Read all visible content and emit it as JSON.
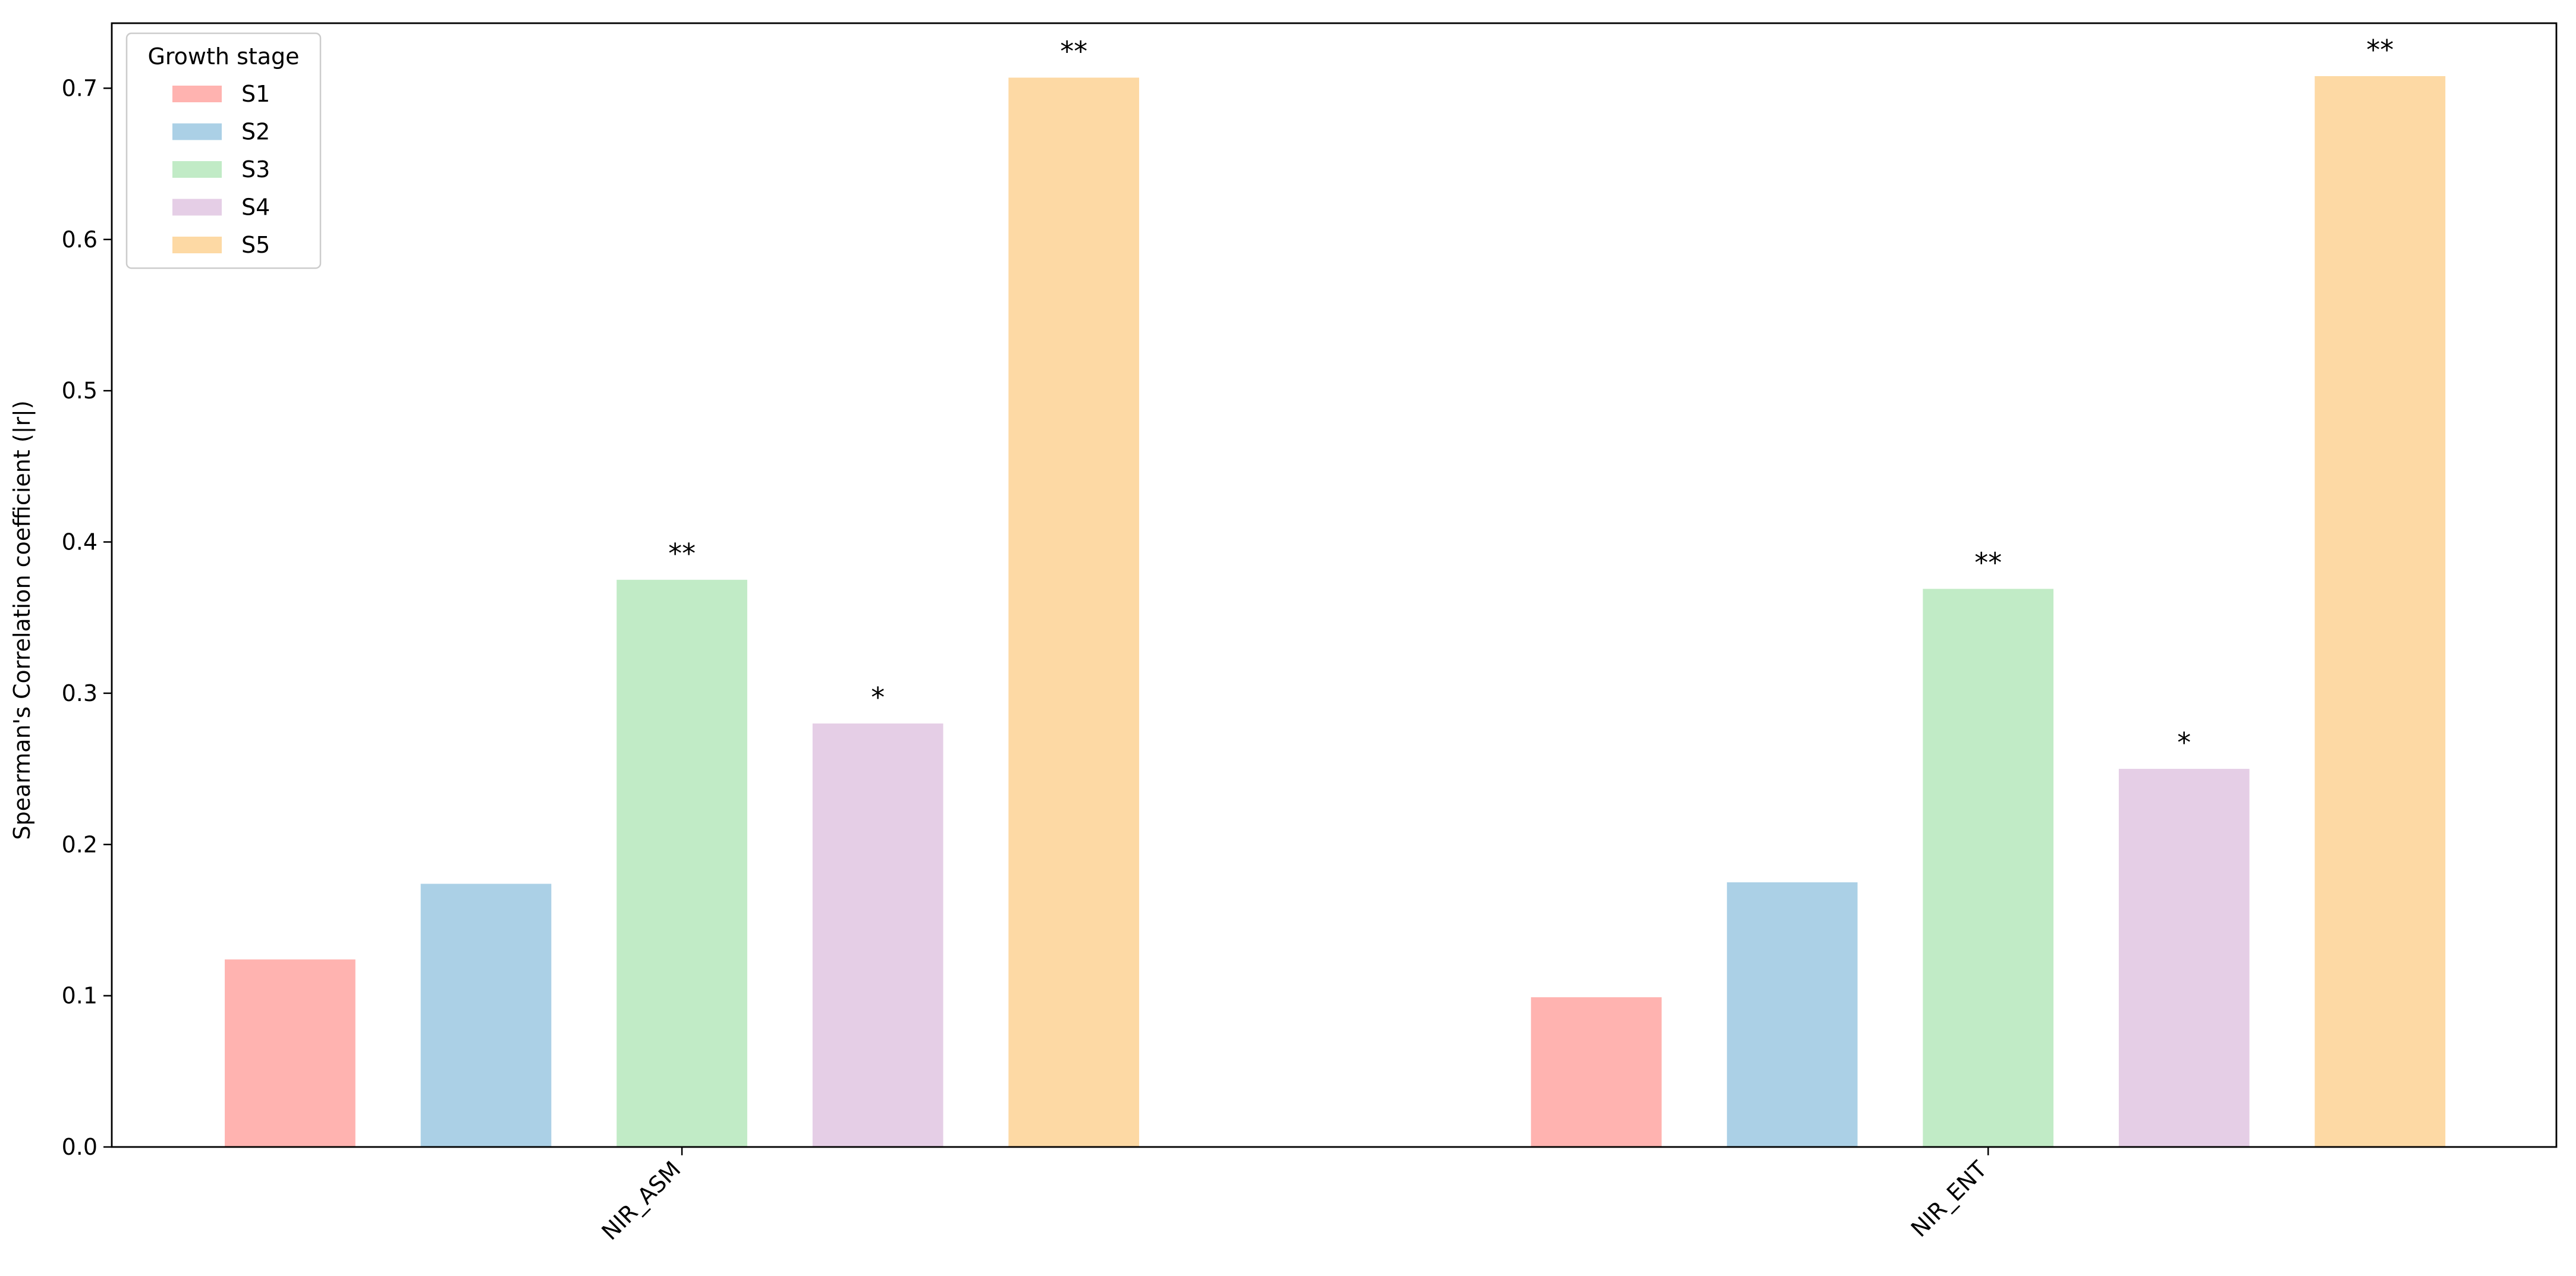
{
  "chart_data": {
    "type": "bar",
    "y_label": "Spearman's Correlation coefficient (|r|)",
    "categories": [
      "NIR_ASM",
      "NIR_ENT"
    ],
    "series": [
      {
        "name": "S1",
        "color": "#ffb3b0",
        "values": [
          0.124,
          0.099
        ],
        "labels": [
          null,
          null
        ]
      },
      {
        "name": "S2",
        "color": "#abd0e6",
        "values": [
          0.174,
          0.175
        ],
        "labels": [
          null,
          null
        ]
      },
      {
        "name": "S3",
        "color": "#c1ebc6",
        "values": [
          0.375,
          0.369
        ],
        "labels": [
          "**",
          "**"
        ]
      },
      {
        "name": "S4",
        "color": "#e5cee6",
        "values": [
          0.28,
          0.25
        ],
        "labels": [
          "*",
          "*"
        ]
      },
      {
        "name": "S5",
        "color": "#fdd9a4",
        "values": [
          0.707,
          0.708
        ],
        "labels": [
          "**",
          "**"
        ]
      }
    ],
    "legend_title": "Growth stage",
    "legend": "upper left",
    "ylim": [
      0,
      0.743
    ],
    "yticks": [
      {
        "value": 0,
        "label": "0.0"
      },
      0.1,
      0.2,
      0.3,
      0.4,
      0.5,
      0.6,
      0.7
    ],
    "grid": false
  }
}
